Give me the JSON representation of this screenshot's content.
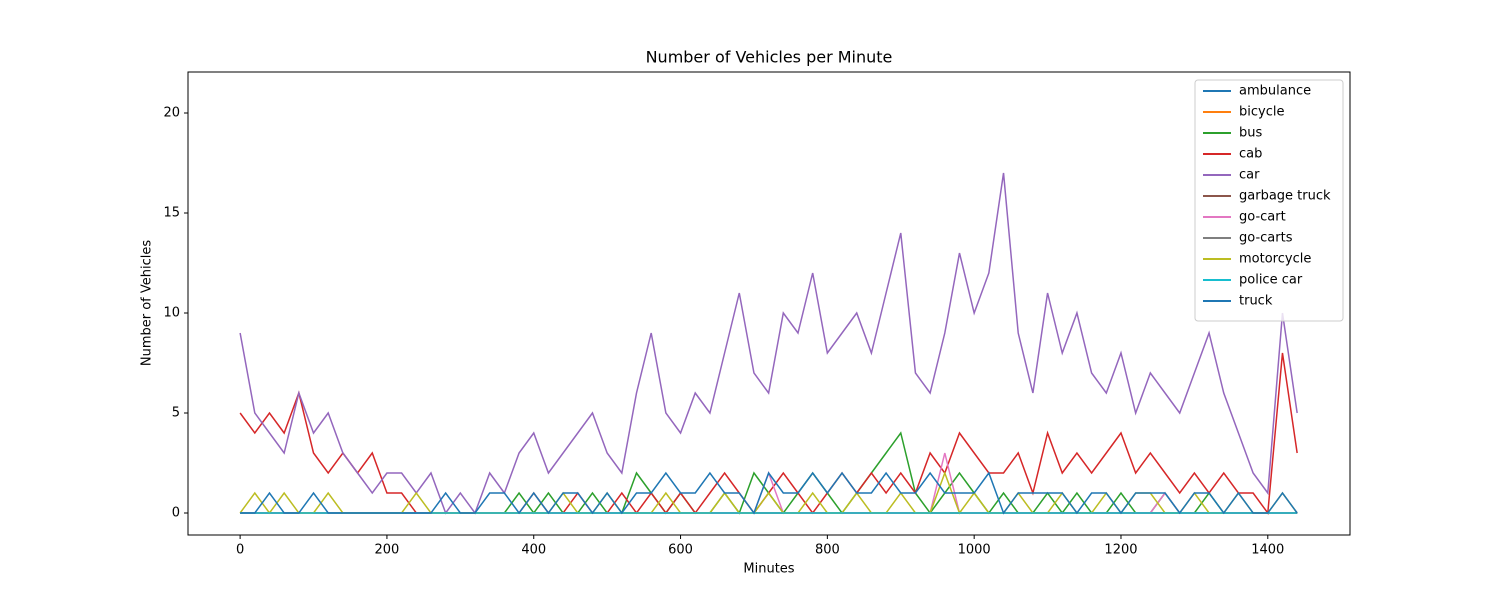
{
  "chart_data": {
    "type": "line",
    "title": "Number of Vehicles per Minute",
    "x_label": "Minutes",
    "y_label": "Number of Vehicles",
    "x": [
      0,
      20,
      40,
      60,
      80,
      100,
      120,
      140,
      160,
      180,
      200,
      220,
      240,
      260,
      280,
      300,
      320,
      340,
      360,
      380,
      400,
      420,
      440,
      460,
      480,
      500,
      520,
      540,
      560,
      580,
      600,
      620,
      640,
      660,
      680,
      700,
      720,
      740,
      760,
      780,
      800,
      820,
      840,
      860,
      880,
      900,
      920,
      940,
      960,
      980,
      1000,
      1020,
      1040,
      1060,
      1080,
      1100,
      1120,
      1140,
      1160,
      1180,
      1200,
      1220,
      1240,
      1260,
      1280,
      1300,
      1320,
      1340,
      1360,
      1380,
      1400,
      1420,
      1440
    ],
    "xlim": [
      -71,
      1512
    ],
    "xticks": [
      0,
      200,
      400,
      600,
      800,
      1000,
      1200,
      1400
    ],
    "ylim": [
      -1.1,
      22.05
    ],
    "yticks": [
      0,
      5,
      10,
      15,
      20
    ],
    "legend_position": "upper right",
    "series": [
      {
        "name": "ambulance",
        "color": "#1f77b4",
        "values": [
          0,
          0,
          0,
          0,
          0,
          0,
          0,
          0,
          0,
          0,
          0,
          0,
          0,
          0,
          0,
          0,
          0,
          0,
          0,
          0,
          0,
          0,
          0,
          0,
          0,
          0,
          0,
          0,
          0,
          0,
          0,
          0,
          0,
          0,
          0,
          0,
          0,
          0,
          0,
          0,
          0,
          0,
          0,
          0,
          0,
          0,
          0,
          0,
          0,
          0,
          0,
          0,
          0,
          0,
          0,
          0,
          0,
          0,
          0,
          0,
          0,
          0,
          0,
          0,
          0,
          0,
          0,
          0,
          0,
          0,
          0,
          0,
          0
        ]
      },
      {
        "name": "bicycle",
        "color": "#ff7f0e",
        "values": [
          0,
          0,
          0,
          0,
          0,
          0,
          0,
          0,
          0,
          0,
          0,
          0,
          0,
          0,
          0,
          0,
          0,
          0,
          0,
          0,
          0,
          0,
          0,
          0,
          0,
          0,
          0,
          0,
          0,
          0,
          0,
          0,
          0,
          0,
          0,
          0,
          0,
          0,
          0,
          0,
          0,
          0,
          0,
          0,
          0,
          0,
          0,
          0,
          0,
          0,
          0,
          0,
          0,
          0,
          0,
          0,
          0,
          0,
          0,
          0,
          0,
          0,
          0,
          0,
          0,
          0,
          0,
          0,
          0,
          0,
          0,
          0,
          0
        ]
      },
      {
        "name": "bus",
        "color": "#2ca02c",
        "values": [
          0,
          0,
          0,
          0,
          0,
          0,
          0,
          0,
          0,
          0,
          0,
          0,
          0,
          0,
          0,
          0,
          0,
          0,
          0,
          1,
          0,
          1,
          0,
          0,
          1,
          0,
          0,
          2,
          1,
          0,
          1,
          0,
          0,
          1,
          0,
          2,
          1,
          0,
          1,
          2,
          1,
          0,
          1,
          2,
          3,
          4,
          1,
          0,
          1,
          2,
          1,
          0,
          1,
          0,
          0,
          1,
          0,
          1,
          0,
          0,
          1,
          0,
          0,
          1,
          0,
          0,
          1,
          0,
          0,
          0,
          0,
          0,
          0
        ]
      },
      {
        "name": "cab",
        "color": "#d62728",
        "values": [
          5,
          4,
          5,
          4,
          6,
          3,
          2,
          3,
          2,
          3,
          1,
          1,
          0,
          0,
          0,
          0,
          0,
          0,
          0,
          0,
          1,
          0,
          0,
          1,
          0,
          0,
          1,
          0,
          1,
          0,
          1,
          0,
          1,
          2,
          1,
          0,
          1,
          2,
          1,
          0,
          1,
          2,
          1,
          2,
          1,
          2,
          1,
          3,
          2,
          4,
          3,
          2,
          2,
          3,
          1,
          4,
          2,
          3,
          2,
          3,
          4,
          2,
          3,
          2,
          1,
          2,
          1,
          2,
          1,
          1,
          0,
          8,
          3
        ]
      },
      {
        "name": "car",
        "color": "#9467bd",
        "values": [
          9,
          5,
          4,
          3,
          6,
          4,
          5,
          3,
          2,
          1,
          2,
          2,
          1,
          2,
          0,
          1,
          0,
          2,
          1,
          3,
          4,
          2,
          3,
          4,
          5,
          3,
          2,
          6,
          9,
          5,
          4,
          6,
          5,
          8,
          11,
          7,
          6,
          10,
          9,
          12,
          8,
          9,
          10,
          8,
          11,
          14,
          7,
          6,
          9,
          13,
          10,
          12,
          17,
          9,
          6,
          11,
          8,
          10,
          7,
          6,
          8,
          5,
          7,
          6,
          5,
          7,
          9,
          6,
          4,
          2,
          1,
          10,
          5
        ]
      },
      {
        "name": "garbage truck",
        "color": "#8c564b",
        "values": [
          0,
          0,
          0,
          0,
          0,
          0,
          0,
          0,
          0,
          0,
          0,
          0,
          0,
          0,
          0,
          0,
          0,
          0,
          0,
          0,
          0,
          0,
          0,
          0,
          0,
          0,
          0,
          0,
          0,
          0,
          0,
          0,
          0,
          0,
          0,
          0,
          0,
          0,
          0,
          0,
          0,
          0,
          0,
          0,
          0,
          0,
          0,
          0,
          0,
          0,
          0,
          0,
          0,
          0,
          0,
          0,
          0,
          0,
          0,
          0,
          0,
          0,
          0,
          0,
          0,
          0,
          0,
          0,
          0,
          0,
          0,
          0,
          0
        ]
      },
      {
        "name": "go-cart",
        "color": "#e377c2",
        "values": [
          0,
          0,
          0,
          0,
          0,
          0,
          0,
          0,
          0,
          0,
          0,
          0,
          0,
          0,
          0,
          0,
          0,
          0,
          0,
          0,
          0,
          0,
          0,
          0,
          0,
          0,
          0,
          0,
          0,
          0,
          0,
          0,
          0,
          0,
          0,
          0,
          2,
          0,
          0,
          0,
          0,
          0,
          0,
          0,
          0,
          0,
          0,
          0,
          3,
          0,
          0,
          0,
          0,
          0,
          0,
          0,
          0,
          0,
          0,
          0,
          0,
          0,
          0,
          1,
          0,
          0,
          0,
          0,
          0,
          0,
          0,
          0,
          0
        ]
      },
      {
        "name": "go-carts",
        "color": "#7f7f7f",
        "values": [
          0,
          0,
          0,
          0,
          0,
          0,
          0,
          0,
          0,
          0,
          0,
          0,
          0,
          0,
          0,
          0,
          0,
          0,
          0,
          0,
          0,
          0,
          0,
          0,
          0,
          0,
          0,
          0,
          0,
          0,
          0,
          0,
          0,
          0,
          0,
          0,
          0,
          0,
          0,
          0,
          0,
          0,
          0,
          0,
          0,
          0,
          0,
          0,
          0,
          0,
          0,
          0,
          0,
          0,
          0,
          0,
          0,
          0,
          0,
          0,
          0,
          0,
          0,
          0,
          0,
          0,
          0,
          0,
          0,
          0,
          0,
          0,
          0
        ]
      },
      {
        "name": "motorcycle",
        "color": "#bcbd22",
        "values": [
          0,
          1,
          0,
          1,
          0,
          0,
          1,
          0,
          0,
          0,
          0,
          0,
          1,
          0,
          0,
          0,
          0,
          0,
          0,
          0,
          0,
          0,
          1,
          0,
          0,
          1,
          0,
          0,
          0,
          1,
          0,
          0,
          0,
          1,
          0,
          0,
          1,
          0,
          0,
          1,
          0,
          0,
          1,
          0,
          0,
          1,
          0,
          0,
          2,
          0,
          1,
          0,
          0,
          1,
          0,
          0,
          1,
          0,
          0,
          1,
          0,
          1,
          1,
          0,
          0,
          1,
          0,
          0,
          1,
          0,
          0,
          1,
          0
        ]
      },
      {
        "name": "police car",
        "color": "#17becf",
        "values": [
          0,
          0,
          0,
          0,
          0,
          0,
          0,
          0,
          0,
          0,
          0,
          0,
          0,
          0,
          0,
          0,
          0,
          0,
          0,
          0,
          0,
          0,
          0,
          0,
          0,
          0,
          0,
          0,
          0,
          0,
          0,
          0,
          0,
          0,
          0,
          0,
          0,
          0,
          0,
          0,
          0,
          0,
          0,
          0,
          0,
          0,
          0,
          0,
          0,
          0,
          0,
          0,
          0,
          0,
          0,
          0,
          0,
          0,
          0,
          0,
          0,
          0,
          0,
          0,
          0,
          0,
          0,
          0,
          0,
          0,
          0,
          0,
          0
        ]
      },
      {
        "name": "truck",
        "color": "#1f77b4",
        "values": [
          0,
          0,
          1,
          0,
          0,
          1,
          0,
          0,
          0,
          0,
          0,
          0,
          0,
          0,
          1,
          0,
          0,
          1,
          1,
          0,
          1,
          0,
          1,
          1,
          0,
          1,
          0,
          1,
          1,
          2,
          1,
          1,
          2,
          1,
          1,
          0,
          2,
          1,
          1,
          2,
          1,
          2,
          1,
          1,
          2,
          1,
          1,
          2,
          1,
          1,
          1,
          2,
          0,
          1,
          1,
          1,
          1,
          0,
          1,
          1,
          0,
          1,
          1,
          1,
          0,
          1,
          1,
          0,
          1,
          0,
          0,
          1,
          0
        ]
      }
    ]
  }
}
